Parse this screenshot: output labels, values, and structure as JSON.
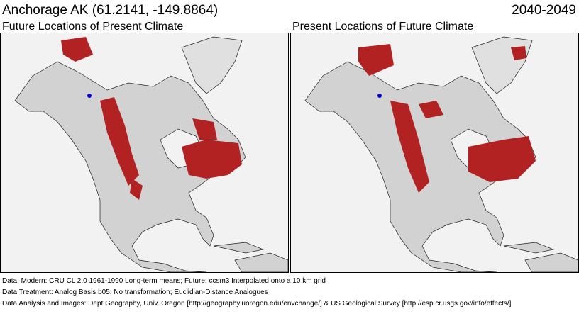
{
  "header": {
    "title": "Anchorage AK  (61.2141, -149.8864)",
    "period": "2040-2049"
  },
  "panels": [
    {
      "title": "Future Locations of Present Climate"
    },
    {
      "title": "Present Locations of Future Climate"
    }
  ],
  "footer": {
    "line1": "Data:  Modern: CRU CL 2.0 1961-1990 Long-term means; Future: ccsm3 Interpolated onto a 10 km grid",
    "line2": "Data Treatment:  Analog Basis b05; No transformation; Euclidian-Distance Analogues",
    "line3": "Data Analysis and Images:  Dept Geography, Univ. Oregon [http://geography.uoregon.edu/envchange/] & US Geological Survey [http://esp.cr.usgs.gov/info/effects/]"
  },
  "colors": {
    "analog": "#b22222",
    "land": "#d0d0d0",
    "location": "#0000cc"
  }
}
